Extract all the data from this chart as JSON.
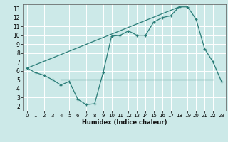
{
  "xlabel": "Humidex (Indice chaleur)",
  "xlim": [
    -0.5,
    23.5
  ],
  "ylim": [
    1.5,
    13.5
  ],
  "xticks": [
    0,
    1,
    2,
    3,
    4,
    5,
    6,
    7,
    8,
    9,
    10,
    11,
    12,
    13,
    14,
    15,
    16,
    17,
    18,
    19,
    20,
    21,
    22,
    23
  ],
  "yticks": [
    2,
    3,
    4,
    5,
    6,
    7,
    8,
    9,
    10,
    11,
    12,
    13
  ],
  "bg_color": "#cce9e8",
  "line_color": "#2a7d78",
  "grid_color": "#ffffff",
  "line1_x": [
    0,
    1,
    2,
    3,
    4,
    5,
    6,
    7,
    8,
    9,
    10,
    11,
    12,
    13,
    14,
    15,
    16,
    17,
    18,
    19,
    20,
    21,
    22,
    23
  ],
  "line1_y": [
    6.3,
    5.8,
    5.5,
    5.0,
    4.4,
    4.8,
    2.8,
    2.2,
    2.3,
    5.8,
    9.9,
    10.0,
    10.5,
    10.0,
    10.0,
    11.5,
    12.0,
    12.2,
    13.2,
    13.2,
    11.8,
    8.5,
    7.0,
    4.8
  ],
  "line2_x": [
    4,
    22
  ],
  "line2_y": [
    5.0,
    5.0
  ],
  "line3_x": [
    0,
    18
  ],
  "line3_y": [
    6.3,
    13.2
  ]
}
